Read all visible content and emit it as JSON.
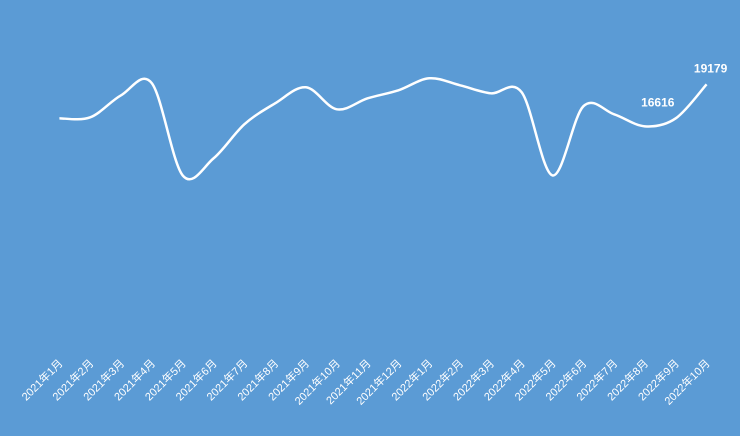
{
  "chart_data": {
    "type": "line",
    "categories": [
      "2021年1月",
      "2021年2月",
      "2021年3月",
      "2021年4月",
      "2021年5月",
      "2021年6月",
      "2021年7月",
      "2021年8月",
      "2021年9月",
      "2021年10月",
      "2021年11月",
      "2021年12月",
      "2022年1月",
      "2022年2月",
      "2022年3月",
      "2022年4月",
      "2022年5月",
      "2022年6月",
      "2022年7月",
      "2022年8月",
      "2022年9月",
      "2022年10月"
    ],
    "values": [
      16616,
      16691,
      18350,
      19255,
      12318,
      13600,
      16164,
      17747,
      18953,
      17295,
      18124,
      18727,
      19632,
      19104,
      18501,
      18576,
      12318,
      17521,
      16918,
      16013,
      16616,
      19179
    ],
    "color": "#ffffff",
    "background": "#5b9bd5",
    "ylim": [
      0,
      25000
    ]
  }
}
